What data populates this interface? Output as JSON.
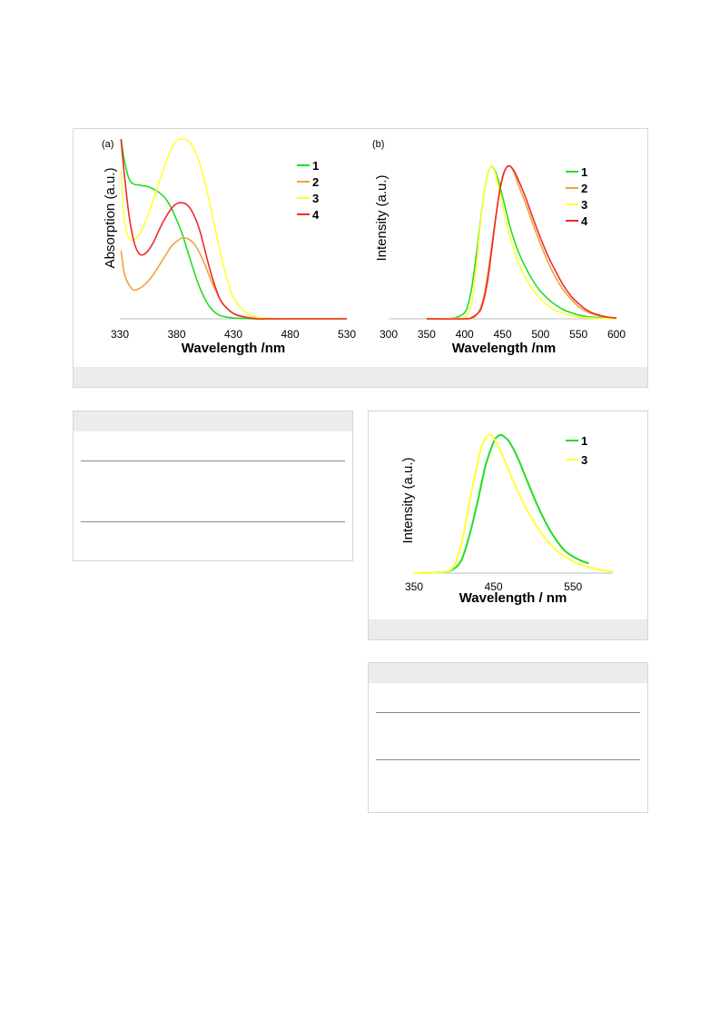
{
  "figure": {
    "panel_a_label": "(a)",
    "panel_b_label": "(b)"
  },
  "colors": {
    "1": "#22dd22",
    "2": "#f2a23a",
    "3": "#ffff33",
    "4": "#ee2a2a"
  },
  "chart_data": [
    {
      "id": "a",
      "type": "line",
      "xlabel": "Wavelength /nm",
      "ylabel": "Absorption (a.u.)",
      "xlim": [
        330,
        530
      ],
      "ylim": [
        0,
        1
      ],
      "xticks": [
        330,
        380,
        430,
        480,
        530
      ],
      "grid": false,
      "legend_position": "top-right",
      "series": [
        {
          "name": "1",
          "x": [
            331,
            334,
            338,
            342,
            346,
            350,
            355,
            360,
            365,
            370,
            375,
            380,
            385,
            390,
            395,
            400,
            405,
            410,
            415,
            420,
            430,
            440,
            450,
            460,
            480,
            530
          ],
          "y": [
            1.0,
            0.88,
            0.78,
            0.75,
            0.745,
            0.74,
            0.735,
            0.72,
            0.7,
            0.67,
            0.62,
            0.55,
            0.47,
            0.37,
            0.27,
            0.18,
            0.11,
            0.06,
            0.03,
            0.015,
            0.005,
            0.002,
            0.0,
            0.0,
            0.0,
            0.0
          ]
        },
        {
          "name": "2",
          "x": [
            331,
            334,
            338,
            342,
            346,
            350,
            355,
            360,
            365,
            370,
            375,
            380,
            385,
            390,
            395,
            400,
            405,
            410,
            415,
            420,
            430,
            440,
            450,
            460,
            480,
            530
          ],
          "y": [
            0.38,
            0.25,
            0.19,
            0.16,
            0.165,
            0.18,
            0.21,
            0.25,
            0.3,
            0.35,
            0.4,
            0.43,
            0.45,
            0.445,
            0.42,
            0.37,
            0.3,
            0.22,
            0.15,
            0.09,
            0.03,
            0.01,
            0.004,
            0.0,
            0.0,
            0.0
          ]
        },
        {
          "name": "3",
          "x": [
            331,
            334,
            338,
            342,
            346,
            350,
            355,
            360,
            365,
            370,
            375,
            380,
            385,
            390,
            395,
            400,
            405,
            410,
            415,
            420,
            425,
            430,
            440,
            450,
            460,
            480,
            530
          ],
          "y": [
            0.82,
            0.55,
            0.45,
            0.44,
            0.46,
            0.5,
            0.58,
            0.67,
            0.77,
            0.86,
            0.94,
            0.99,
            1.0,
            0.99,
            0.95,
            0.87,
            0.76,
            0.62,
            0.47,
            0.33,
            0.21,
            0.12,
            0.04,
            0.01,
            0.004,
            0.0,
            0.0
          ]
        },
        {
          "name": "4",
          "x": [
            331,
            334,
            338,
            342,
            346,
            350,
            355,
            360,
            365,
            370,
            375,
            380,
            385,
            390,
            395,
            400,
            405,
            410,
            415,
            420,
            430,
            440,
            450,
            460,
            480,
            530
          ],
          "y": [
            1.0,
            0.8,
            0.58,
            0.44,
            0.37,
            0.355,
            0.38,
            0.43,
            0.5,
            0.56,
            0.61,
            0.64,
            0.645,
            0.63,
            0.58,
            0.5,
            0.38,
            0.26,
            0.16,
            0.09,
            0.03,
            0.01,
            0.0,
            0.0,
            0.0,
            0.0
          ]
        }
      ]
    },
    {
      "id": "b",
      "type": "line",
      "xlabel": "Wavelength /nm",
      "ylabel": "Intensity (a.u.)",
      "xlim": [
        300,
        600
      ],
      "ylim": [
        0,
        1
      ],
      "xticks": [
        300,
        350,
        400,
        450,
        500,
        550,
        600
      ],
      "grid": false,
      "legend_position": "top-right",
      "series": [
        {
          "name": "1",
          "x": [
            350,
            380,
            390,
            400,
            405,
            410,
            415,
            420,
            425,
            430,
            435,
            440,
            445,
            450,
            455,
            460,
            470,
            480,
            490,
            500,
            510,
            520,
            530,
            540,
            550,
            560,
            570,
            580,
            590,
            600
          ],
          "y": [
            0.0,
            0.002,
            0.01,
            0.04,
            0.1,
            0.22,
            0.4,
            0.6,
            0.8,
            0.94,
            1.0,
            0.97,
            0.9,
            0.8,
            0.7,
            0.6,
            0.45,
            0.34,
            0.25,
            0.18,
            0.13,
            0.09,
            0.06,
            0.04,
            0.025,
            0.015,
            0.01,
            0.006,
            0.003,
            0.002
          ]
        },
        {
          "name": "2",
          "x": [
            350,
            400,
            410,
            415,
            420,
            425,
            430,
            435,
            440,
            445,
            450,
            455,
            460,
            465,
            470,
            480,
            490,
            500,
            510,
            520,
            530,
            540,
            550,
            560,
            570,
            580,
            590,
            600
          ],
          "y": [
            0.0,
            0.0,
            0.004,
            0.02,
            0.06,
            0.14,
            0.28,
            0.45,
            0.63,
            0.8,
            0.92,
            0.99,
            1.0,
            0.96,
            0.89,
            0.76,
            0.62,
            0.49,
            0.37,
            0.27,
            0.19,
            0.13,
            0.08,
            0.05,
            0.03,
            0.015,
            0.006,
            0.002
          ]
        },
        {
          "name": "3",
          "x": [
            350,
            390,
            400,
            405,
            410,
            415,
            420,
            425,
            430,
            435,
            440,
            445,
            450,
            455,
            460,
            470,
            480,
            490,
            500,
            510,
            520,
            530,
            540,
            550,
            560,
            570,
            580,
            590,
            600
          ],
          "y": [
            0.0,
            0.002,
            0.01,
            0.04,
            0.12,
            0.32,
            0.58,
            0.8,
            0.94,
            1.0,
            0.96,
            0.86,
            0.74,
            0.63,
            0.53,
            0.38,
            0.27,
            0.19,
            0.13,
            0.085,
            0.055,
            0.035,
            0.02,
            0.012,
            0.007,
            0.004,
            0.002,
            0.001,
            0.0
          ]
        },
        {
          "name": "4",
          "x": [
            350,
            400,
            410,
            420,
            425,
            430,
            435,
            440,
            445,
            450,
            455,
            460,
            465,
            470,
            480,
            490,
            500,
            510,
            520,
            530,
            540,
            550,
            560,
            570,
            580,
            590,
            600
          ],
          "y": [
            0.0,
            0.0,
            0.01,
            0.05,
            0.12,
            0.24,
            0.42,
            0.62,
            0.8,
            0.93,
            0.99,
            1.0,
            0.97,
            0.92,
            0.8,
            0.66,
            0.53,
            0.41,
            0.31,
            0.22,
            0.15,
            0.1,
            0.06,
            0.035,
            0.02,
            0.01,
            0.005
          ]
        }
      ]
    },
    {
      "id": "c",
      "type": "line",
      "xlabel": "Wavelength / nm",
      "ylabel": "Intensity (a.u.)",
      "xlim": [
        350,
        600
      ],
      "ylim": [
        0,
        1
      ],
      "xticks": [
        350,
        450,
        550
      ],
      "grid": false,
      "legend_position": "top-right",
      "series": [
        {
          "name": "1",
          "x": [
            350,
            380,
            390,
            400,
            410,
            420,
            430,
            440,
            450,
            455,
            460,
            465,
            470,
            480,
            490,
            500,
            510,
            520,
            530,
            540,
            550,
            560,
            570
          ],
          "y": [
            0.0,
            0.005,
            0.01,
            0.03,
            0.1,
            0.28,
            0.52,
            0.78,
            0.95,
            0.99,
            1.0,
            0.98,
            0.95,
            0.84,
            0.7,
            0.56,
            0.43,
            0.32,
            0.23,
            0.16,
            0.12,
            0.09,
            0.07
          ]
        },
        {
          "name": "3",
          "x": [
            350,
            380,
            390,
            400,
            410,
            420,
            430,
            435,
            440,
            445,
            450,
            460,
            470,
            480,
            490,
            500,
            510,
            520,
            530,
            540,
            550,
            560,
            570,
            580,
            590,
            600
          ],
          "y": [
            0.0,
            0.005,
            0.01,
            0.05,
            0.22,
            0.52,
            0.8,
            0.92,
            0.98,
            1.0,
            0.98,
            0.87,
            0.73,
            0.6,
            0.48,
            0.38,
            0.29,
            0.22,
            0.16,
            0.12,
            0.085,
            0.06,
            0.045,
            0.03,
            0.02,
            0.01
          ]
        }
      ]
    }
  ]
}
